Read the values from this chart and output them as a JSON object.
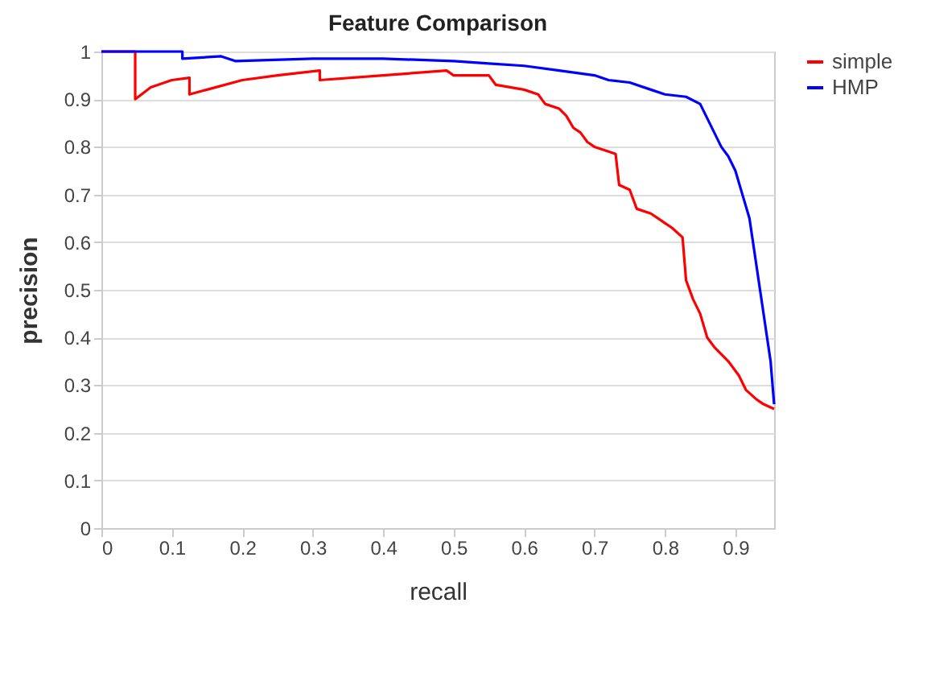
{
  "chart_data": {
    "type": "line",
    "title": "Feature Comparison",
    "xlabel": "recall",
    "ylabel": "precision",
    "xlim": [
      0,
      0.955
    ],
    "xticks": [
      0,
      0.1,
      0.2,
      0.3,
      0.4,
      0.5,
      0.6,
      0.7,
      0.8,
      0.9
    ],
    "ylim": [
      0,
      1
    ],
    "yticks": [
      0,
      0.1,
      0.2,
      0.3,
      0.4,
      0.5,
      0.6,
      0.7,
      0.8,
      0.9,
      1
    ],
    "grid": "y",
    "legend": "right",
    "marker": "none",
    "line_style": "solid",
    "series": [
      {
        "name": "simple",
        "color": "#ff0000",
        "x": [
          0,
          0.048,
          0.048,
          0.07,
          0.1,
          0.125,
          0.125,
          0.2,
          0.25,
          0.31,
          0.31,
          0.4,
          0.49,
          0.5,
          0.55,
          0.56,
          0.6,
          0.62,
          0.63,
          0.65,
          0.66,
          0.67,
          0.68,
          0.69,
          0.7,
          0.72,
          0.73,
          0.735,
          0.75,
          0.76,
          0.78,
          0.79,
          0.8,
          0.81,
          0.825,
          0.83,
          0.84,
          0.85,
          0.86,
          0.87,
          0.89,
          0.905,
          0.915,
          0.93,
          0.94,
          0.955
        ],
        "values": [
          1,
          1,
          0.9,
          0.925,
          0.94,
          0.945,
          0.91,
          0.94,
          0.95,
          0.96,
          0.94,
          0.95,
          0.96,
          0.95,
          0.95,
          0.93,
          0.92,
          0.91,
          0.89,
          0.88,
          0.865,
          0.84,
          0.83,
          0.81,
          0.8,
          0.79,
          0.785,
          0.72,
          0.71,
          0.67,
          0.66,
          0.65,
          0.64,
          0.63,
          0.61,
          0.52,
          0.48,
          0.45,
          0.4,
          0.38,
          0.35,
          0.32,
          0.29,
          0.27,
          0.26,
          0.25
        ]
      },
      {
        "name": "HMP",
        "color": "#0000ff",
        "x": [
          0,
          0.115,
          0.115,
          0.17,
          0.19,
          0.3,
          0.4,
          0.5,
          0.55,
          0.6,
          0.65,
          0.7,
          0.72,
          0.75,
          0.78,
          0.8,
          0.83,
          0.85,
          0.86,
          0.87,
          0.88,
          0.89,
          0.9,
          0.91,
          0.92,
          0.925,
          0.935,
          0.94,
          0.945,
          0.95,
          0.955
        ],
        "values": [
          1,
          1,
          0.985,
          0.99,
          0.98,
          0.985,
          0.985,
          0.98,
          0.975,
          0.97,
          0.96,
          0.95,
          0.94,
          0.935,
          0.92,
          0.91,
          0.905,
          0.89,
          0.86,
          0.83,
          0.8,
          0.78,
          0.75,
          0.7,
          0.65,
          0.6,
          0.5,
          0.45,
          0.4,
          0.35,
          0.26
        ]
      }
    ]
  }
}
